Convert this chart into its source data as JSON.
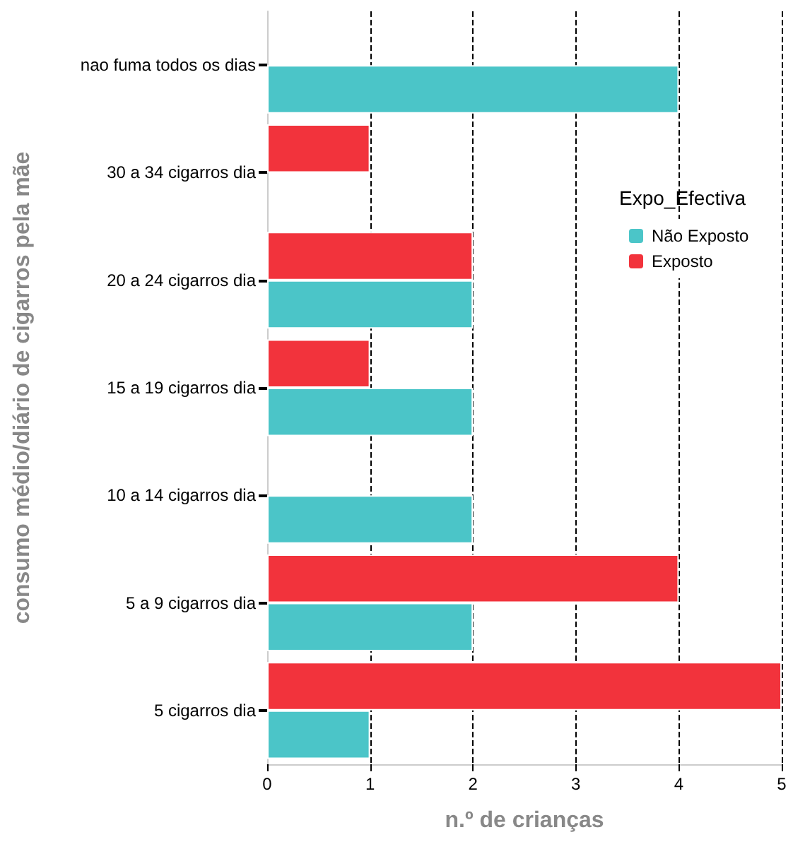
{
  "chart_data": {
    "type": "bar",
    "orientation": "horizontal",
    "xlabel": "n.º de crianças",
    "ylabel": "consumo médio/diário de cigarros pela mãe",
    "legend_title": "Expo_Efectiva",
    "legend": "top right",
    "grid": "x",
    "categories": [
      "nao fuma todos os dias",
      "30 a 34 cigarros dia",
      "20 a 24 cigarros dia",
      "15 a 19 cigarros dia",
      "10 a 14 cigarros dia",
      "5 a 9 cigarros dia",
      "5 cigarros dia"
    ],
    "series": [
      {
        "name": "Não Exposto",
        "color": "#4bc5c8",
        "values": [
          4,
          null,
          2,
          2,
          2,
          2,
          1
        ]
      },
      {
        "name": "Exposto",
        "color": "#f2333c",
        "values": [
          null,
          1,
          2,
          1,
          null,
          4,
          5
        ]
      }
    ],
    "xlim": [
      0,
      5
    ],
    "xticks": [
      0,
      1,
      2,
      3,
      4,
      5
    ]
  }
}
